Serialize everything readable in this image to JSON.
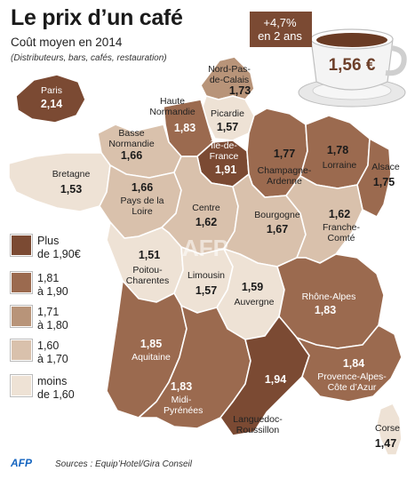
{
  "title": "Le prix d’un café",
  "subtitle": "Coût moyen en 2014",
  "note": "(Distributeurs, bars, cafés, restauration)",
  "increase": {
    "line1": "+4,7%",
    "line2": "en 2 ans"
  },
  "national_price": "1,56 €",
  "legend": [
    {
      "label_1": "Plus",
      "label_2": "de 1,90€",
      "color": "#7b4a33"
    },
    {
      "label_1": "1,81",
      "label_2": "à 1,90",
      "color": "#9b6a4f"
    },
    {
      "label_1": "1,71",
      "label_2": "à 1,80",
      "color": "#b89479"
    },
    {
      "label_1": "1,60",
      "label_2": "à 1,70",
      "color": "#d9c1ac"
    },
    {
      "label_1": "moins",
      "label_2": "de 1,60",
      "color": "#eee2d5"
    }
  ],
  "regions": [
    {
      "id": "paris",
      "name": "Paris",
      "value": "2,14"
    },
    {
      "id": "nord",
      "name": "Nord-Pas-de-Calais",
      "value": "1,73"
    },
    {
      "id": "haute-normandie",
      "name": "Haute Normandie",
      "value": "1,83"
    },
    {
      "id": "picardie",
      "name": "Picardie",
      "value": "1,57"
    },
    {
      "id": "basse-normandie",
      "name": "Basse Normandie",
      "value": "1,66"
    },
    {
      "id": "idf",
      "name": "Île-de-France",
      "value": "1,91"
    },
    {
      "id": "champagne",
      "name": "Champagne-Ardenne",
      "value": "1,77"
    },
    {
      "id": "lorraine",
      "name": "Lorraine",
      "value": "1,78"
    },
    {
      "id": "alsace",
      "name": "Alsace",
      "value": "1,75"
    },
    {
      "id": "bretagne",
      "name": "Bretagne",
      "value": "1,53"
    },
    {
      "id": "pdl",
      "name": "Pays de la Loire",
      "value": "1,66"
    },
    {
      "id": "centre",
      "name": "Centre",
      "value": "1,62"
    },
    {
      "id": "bourgogne",
      "name": "Bourgogne",
      "value": "1,67"
    },
    {
      "id": "franche-comte",
      "name": "Franche-Comté",
      "value": "1,62"
    },
    {
      "id": "poitou",
      "name": "Poitou-Charentes",
      "value": "1,51"
    },
    {
      "id": "limousin",
      "name": "Limousin",
      "value": "1,57"
    },
    {
      "id": "auvergne",
      "name": "Auvergne",
      "value": "1,59"
    },
    {
      "id": "rhone-alpes",
      "name": "Rhône-Alpes",
      "value": "1,83"
    },
    {
      "id": "aquitaine",
      "name": "Aquitaine",
      "value": "1,85"
    },
    {
      "id": "midi-pyrenees",
      "name": "Midi-Pyrénées",
      "value": "1,83"
    },
    {
      "id": "languedoc",
      "name": "Languedoc-Roussillon",
      "value": "1,94"
    },
    {
      "id": "paca",
      "name": "Provence-Alpes-Côte d’Azur",
      "value": "1,84"
    },
    {
      "id": "corse",
      "name": "Corse",
      "value": "1,47"
    }
  ],
  "source_logo": "AFP",
  "sources": "Sources : Equip’Hotel/Gira Conseil"
}
